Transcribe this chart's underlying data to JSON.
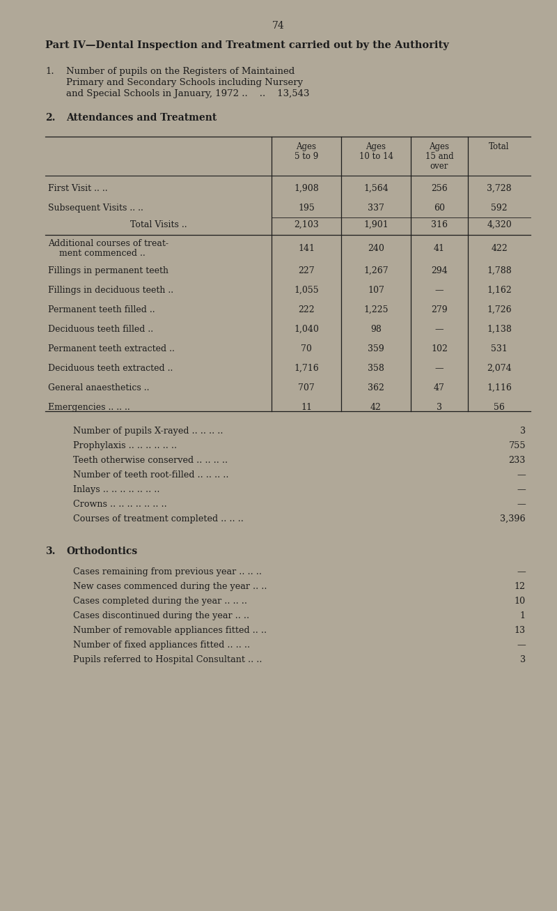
{
  "page_number": "74",
  "bg_color": "#b0a898",
  "text_color": "#1c1c1c",
  "title": "Part IV—Dental Inspection and Treatment carried out by the Authority",
  "s1_label": "1.",
  "s1_lines": [
    "Number of pupils on the Registers of Maintained",
    "Primary and Secondary Schools including Nursery",
    "and Special Schools in January, 1972 ..    ..    13,543"
  ],
  "s2_label": "2.",
  "s2_heading": "Attendances and Treatment",
  "col_headers": [
    "Ages\n5 to 9",
    "Ages\n10 to 14",
    "Ages\n15 and\nover",
    "Total"
  ],
  "row_labels": [
    "First Visit .. ..",
    "Subsequent Visits .. ..",
    "Total Visits ..",
    "Additional courses of treat-\n    ment commenced ..",
    "Fillings in permanent teeth",
    "Fillings in deciduous teeth ..",
    "Permanent teeth filled ..",
    "Deciduous teeth filled ..",
    "Permanent teeth extracted ..",
    "Deciduous teeth extracted ..",
    "General anaesthetics ..",
    "Emergencies .. .. .."
  ],
  "row_vals": [
    [
      "1,908",
      "1,564",
      "256",
      "3,728"
    ],
    [
      "195",
      "337",
      "60",
      "592"
    ],
    [
      "2,103",
      "1,901",
      "316",
      "4,320"
    ],
    [
      "141",
      "240",
      "41",
      "422"
    ],
    [
      "227",
      "1,267",
      "294",
      "1,788"
    ],
    [
      "1,055",
      "107",
      "—",
      "1,162"
    ],
    [
      "222",
      "1,225",
      "279",
      "1,726"
    ],
    [
      "1,040",
      "98",
      "—",
      "1,138"
    ],
    [
      "70",
      "359",
      "102",
      "531"
    ],
    [
      "1,716",
      "358",
      "—",
      "2,074"
    ],
    [
      "707",
      "362",
      "47",
      "1,116"
    ],
    [
      "11",
      "42",
      "3",
      "56"
    ]
  ],
  "s2b_items": [
    [
      "Number of pupils X-rayed .. .. .. ..",
      "3"
    ],
    [
      "Prophylaxis .. .. .. .. .. ..",
      "755"
    ],
    [
      "Teeth otherwise conserved .. .. .. ..",
      "233"
    ],
    [
      "Number of teeth root-filled .. .. .. ..",
      "—"
    ],
    [
      "Inlays .. .. .. .. .. .. ..",
      "—"
    ],
    [
      "Crowns .. .. .. .. .. .. ..",
      "—"
    ],
    [
      "Courses of treatment completed .. .. ..",
      "3,396"
    ]
  ],
  "s3_label": "3.",
  "s3_heading": "Orthodontics",
  "s3_items": [
    [
      "Cases remaining from previous year .. .. ..",
      "—"
    ],
    [
      "New cases commenced during the year .. ..",
      "12"
    ],
    [
      "Cases completed during the year .. .. ..",
      "10"
    ],
    [
      "Cases discontinued during the year .. ..",
      "1"
    ],
    [
      "Number of removable appliances fitted .. ..",
      "13"
    ],
    [
      "Number of fixed appliances fitted .. .. ..",
      "—"
    ],
    [
      "Pupils referred to Hospital Consultant .. ..",
      "3"
    ]
  ]
}
